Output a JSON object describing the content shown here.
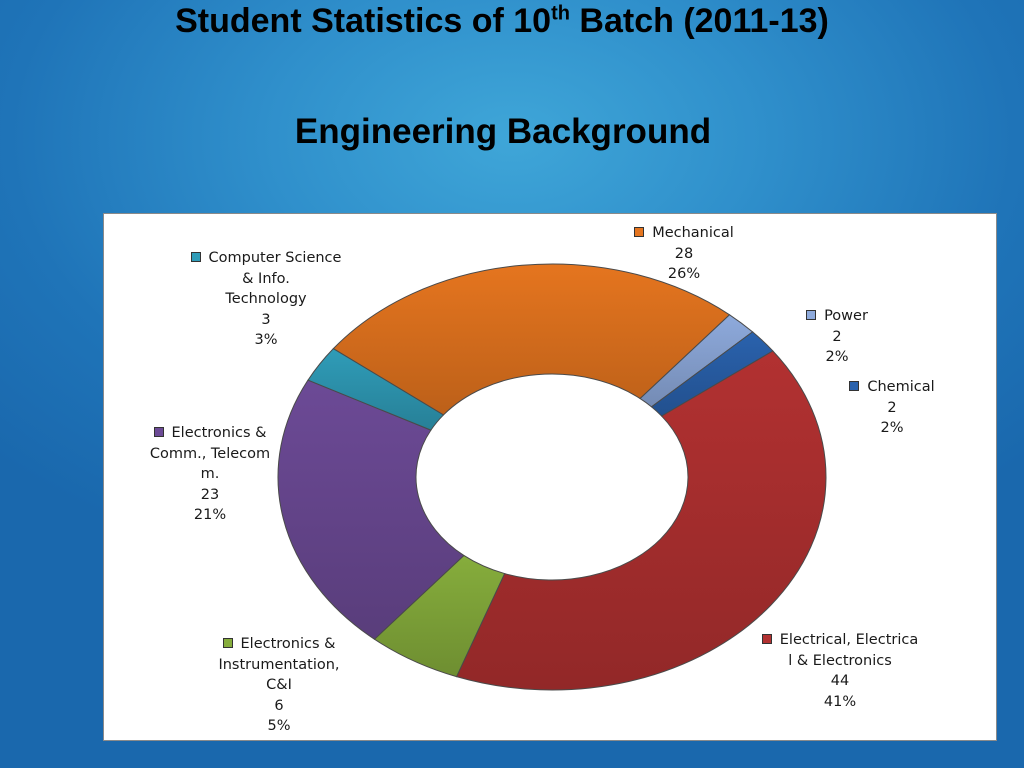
{
  "slide": {
    "title_main": "Student Statistics of 10",
    "title_sup": "th",
    "title_tail": " Batch (2011-13)",
    "subtitle": "Engineering Background"
  },
  "chart_data": {
    "type": "pie",
    "variant": "doughnut",
    "title": "",
    "legend_placement": "data-labels",
    "slices": [
      {
        "key": "mech",
        "name": "Mechanical",
        "value": 28,
        "percent": "26%",
        "color": "#e5751f",
        "label_lines": [
          "Mechanical"
        ],
        "value_text": "28"
      },
      {
        "key": "power",
        "name": "Power",
        "value": 2,
        "percent": "2%",
        "color": "#8eaadc",
        "label_lines": [
          "Power"
        ],
        "value_text": "2"
      },
      {
        "key": "chem",
        "name": "Chemical",
        "value": 2,
        "percent": "2%",
        "color": "#2a62ad",
        "label_lines": [
          "Chemical"
        ],
        "value_text": "2"
      },
      {
        "key": "elec",
        "name": "Electrical, Electrical & Electronics",
        "value": 44,
        "percent": "41%",
        "color": "#b23131",
        "label_lines": [
          "Electrical, Electrica",
          "l & Electronics"
        ],
        "value_text": "44"
      },
      {
        "key": "ei",
        "name": "Electronics & Instrumentation, C&I",
        "value": 6,
        "percent": "5%",
        "color": "#86ad3c",
        "label_lines": [
          "Electronics &",
          "Instrumentation,",
          "C&I"
        ],
        "value_text": "6"
      },
      {
        "key": "ece",
        "name": "Electronics & Comm., Telecom.",
        "value": 23,
        "percent": "21%",
        "color": "#6c4a96",
        "label_lines": [
          "Electronics &",
          "Comm., Telecom",
          "m."
        ],
        "value_text": "23"
      },
      {
        "key": "cs",
        "name": "Computer Science & Info. Technology",
        "value": 3,
        "percent": "3%",
        "color": "#2f9cb8",
        "label_lines": [
          "Computer Science",
          "& Info.",
          "Technology"
        ],
        "value_text": "3"
      }
    ]
  }
}
